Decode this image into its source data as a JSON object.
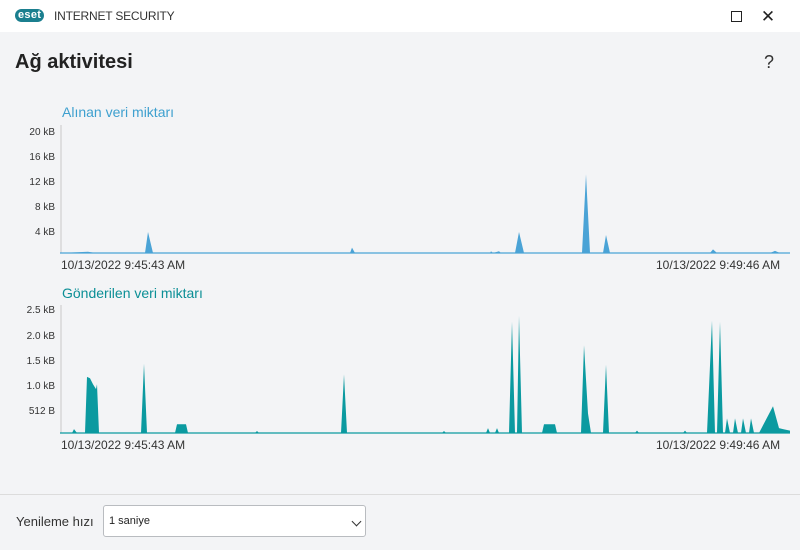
{
  "window": {
    "brand_badge": "eset",
    "app_name": "INTERNET SECURITY",
    "controls": [
      "maximize-icon",
      "close-icon"
    ]
  },
  "page": {
    "title": "Ağ aktivitesi",
    "help": "?"
  },
  "charts": {
    "received": {
      "title": "Alınan veri miktarı",
      "color": "#4aa3d6",
      "y_ticks": [
        "20 kB",
        "16 kB",
        "12 kB",
        "8 kB",
        "4 kB"
      ],
      "start_time": "10/13/2022 9:45:43 AM",
      "end_time": "10/13/2022 9:49:46 AM"
    },
    "sent": {
      "title": "Gönderilen veri miktarı",
      "color": "#0b9aa0",
      "y_ticks": [
        "2.5 kB",
        "2.0 kB",
        "1.5 kB",
        "1.0 kB",
        "512 B"
      ],
      "start_time": "10/13/2022 9:45:43 AM",
      "end_time": "10/13/2022 9:49:46 AM"
    }
  },
  "refresh": {
    "label": "Yenileme hızı",
    "selected": "1 saniye"
  },
  "chart_data": [
    {
      "type": "area",
      "title": "Alınan veri miktarı",
      "ylabel": "",
      "ylim_kb": [
        0,
        20
      ],
      "y_ticks_kb": [
        4,
        8,
        12,
        16,
        20
      ],
      "x_start": "10/13/2022 9:45:43 AM",
      "x_end": "10/13/2022 9:49:46 AM",
      "series": [
        {
          "points": [
            [
              0,
              0
            ],
            [
              28,
              0.2
            ],
            [
              36,
              0
            ],
            [
              85,
              0
            ],
            [
              88,
              3.5
            ],
            [
              93,
              0
            ],
            [
              290,
              0
            ],
            [
              292,
              0.9
            ],
            [
              295,
              0
            ],
            [
              430,
              0
            ],
            [
              431,
              0.3
            ],
            [
              433,
              0
            ],
            [
              439,
              0.3
            ],
            [
              441,
              0
            ],
            [
              455,
              0
            ],
            [
              459,
              3.5
            ],
            [
              464,
              0
            ],
            [
              522,
              0
            ],
            [
              526,
              13.1
            ],
            [
              530,
              0
            ],
            [
              543,
              0
            ],
            [
              546,
              3.0
            ],
            [
              550,
              0
            ],
            [
              650,
              0
            ],
            [
              653,
              0.6
            ],
            [
              657,
              0
            ],
            [
              710,
              0
            ],
            [
              715,
              0.35
            ],
            [
              720,
              0
            ],
            [
              730,
              0
            ]
          ]
        }
      ]
    },
    {
      "type": "area",
      "title": "Gönderilen veri miktarı",
      "ylabel": "",
      "ylim_kb": [
        0,
        2.5
      ],
      "y_ticks_kb": [
        0.5,
        1.0,
        1.5,
        2.0,
        2.5
      ],
      "x_start": "10/13/2022 9:45:43 AM",
      "x_end": "10/13/2022 9:49:46 AM",
      "series": [
        {
          "points": [
            [
              0,
              0
            ],
            [
              12,
              0
            ],
            [
              14,
              0.08
            ],
            [
              17,
              0
            ],
            [
              25,
              0
            ],
            [
              27,
              1.15
            ],
            [
              30,
              1.12
            ],
            [
              33,
              1.0
            ],
            [
              36,
              0.9
            ],
            [
              37,
              1.0
            ],
            [
              39,
              0
            ],
            [
              81,
              0
            ],
            [
              84,
              1.42
            ],
            [
              87,
              0
            ],
            [
              115,
              0
            ],
            [
              117,
              0.18
            ],
            [
              126,
              0.18
            ],
            [
              128,
              0
            ],
            [
              195,
              0
            ],
            [
              197,
              0.04
            ],
            [
              199,
              0
            ],
            [
              281,
              0
            ],
            [
              284,
              1.2
            ],
            [
              287,
              0
            ],
            [
              382,
              0
            ],
            [
              384,
              0.04
            ],
            [
              386,
              0
            ],
            [
              426,
              0
            ],
            [
              428,
              0.1
            ],
            [
              430,
              0
            ],
            [
              435,
              0
            ],
            [
              437,
              0.1
            ],
            [
              439,
              0
            ],
            [
              449,
              0
            ],
            [
              452,
              2.28
            ],
            [
              455,
              0
            ],
            [
              457,
              0
            ],
            [
              459,
              2.4
            ],
            [
              462,
              0
            ],
            [
              482,
              0
            ],
            [
              484,
              0.18
            ],
            [
              495,
              0.18
            ],
            [
              497,
              0
            ],
            [
              521,
              0
            ],
            [
              524,
              1.8
            ],
            [
              528,
              0.4
            ],
            [
              531,
              0
            ],
            [
              543,
              0
            ],
            [
              546,
              1.4
            ],
            [
              549,
              0
            ],
            [
              575,
              0
            ],
            [
              577,
              0.05
            ],
            [
              579,
              0
            ],
            [
              623,
              0
            ],
            [
              625,
              0.05
            ],
            [
              627,
              0
            ],
            [
              647,
              0
            ],
            [
              652,
              2.3
            ],
            [
              655,
              0
            ],
            [
              657,
              0
            ],
            [
              660,
              2.28
            ],
            [
              663,
              0
            ],
            [
              665,
              0
            ],
            [
              667,
              0.3
            ],
            [
              670,
              0
            ],
            [
              673,
              0
            ],
            [
              675,
              0.3
            ],
            [
              678,
              0
            ],
            [
              681,
              0
            ],
            [
              683,
              0.3
            ],
            [
              686,
              0
            ],
            [
              689,
              0
            ],
            [
              691,
              0.3
            ],
            [
              694,
              0
            ],
            [
              699,
              0
            ],
            [
              713,
              0.55
            ],
            [
              719,
              0.1
            ],
            [
              723,
              0.08
            ],
            [
              730,
              0.05
            ]
          ]
        }
      ]
    }
  ]
}
